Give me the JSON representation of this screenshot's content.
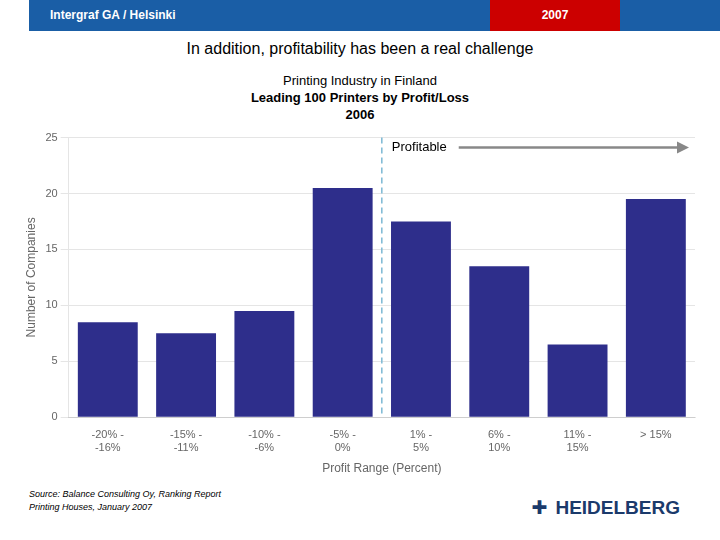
{
  "chart_data": {
    "type": "bar",
    "title": [
      "Printing Industry in Finland",
      "Leading 100 Printers by Profit/Loss",
      "2006"
    ],
    "categories": [
      "-20% -\n-16%",
      "-15% -\n-11%",
      "-10% -\n-6%",
      "-5% -\n0%",
      "1% -\n5%",
      "6% -\n10%",
      "11% -\n15%",
      "> 15%"
    ],
    "values": [
      8.5,
      7.5,
      9.5,
      20.5,
      17.5,
      13.5,
      6.5,
      19.5
    ],
    "color": "#2E2E8B",
    "xlabel": "Profit Range (Percent)",
    "ylabel": "Number of Companies",
    "ylim": [
      0,
      25
    ],
    "yticks": [
      0,
      5,
      10,
      15,
      20,
      25
    ],
    "grid": true,
    "annotations": [
      "Intergraf GA / Helsinki",
      "2007",
      "In addition, profitability has been a real challenge",
      "Profitable",
      "Source:  Balance Consulting Oy, Ranking Report\nPrinting Houses, January 2007",
      "✚",
      "HEIDELBERG"
    ]
  }
}
